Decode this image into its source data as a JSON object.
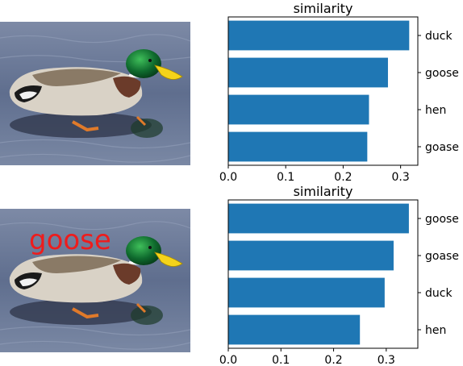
{
  "panels": [
    {
      "photo": {
        "overlay_text": ""
      },
      "chart_title": "similarity"
    },
    {
      "photo": {
        "overlay_text": "goose",
        "overlay_color": "#ee1c1c"
      },
      "chart_title": "similarity"
    }
  ],
  "colors": {
    "bar": "#1f77b4"
  },
  "chart_data": [
    {
      "type": "bar",
      "orientation": "horizontal",
      "title": "similarity",
      "categories": [
        "duck",
        "goose",
        "hen",
        "goase"
      ],
      "values": [
        0.315,
        0.278,
        0.245,
        0.242
      ],
      "xlim": [
        0,
        0.33
      ],
      "xticks": [
        0.0,
        0.1,
        0.2,
        0.3
      ],
      "xtick_labels": [
        "0.0",
        "0.1",
        "0.2",
        "0.3"
      ],
      "ytick_side": "right",
      "grid": false
    },
    {
      "type": "bar",
      "orientation": "horizontal",
      "title": "similarity",
      "categories": [
        "goose",
        "goase",
        "duck",
        "hen"
      ],
      "values": [
        0.343,
        0.314,
        0.297,
        0.25
      ],
      "xlim": [
        0,
        0.36
      ],
      "xticks": [
        0.0,
        0.1,
        0.2,
        0.3
      ],
      "xtick_labels": [
        "0.0",
        "0.1",
        "0.2",
        "0.3"
      ],
      "ytick_side": "right",
      "grid": false
    }
  ]
}
